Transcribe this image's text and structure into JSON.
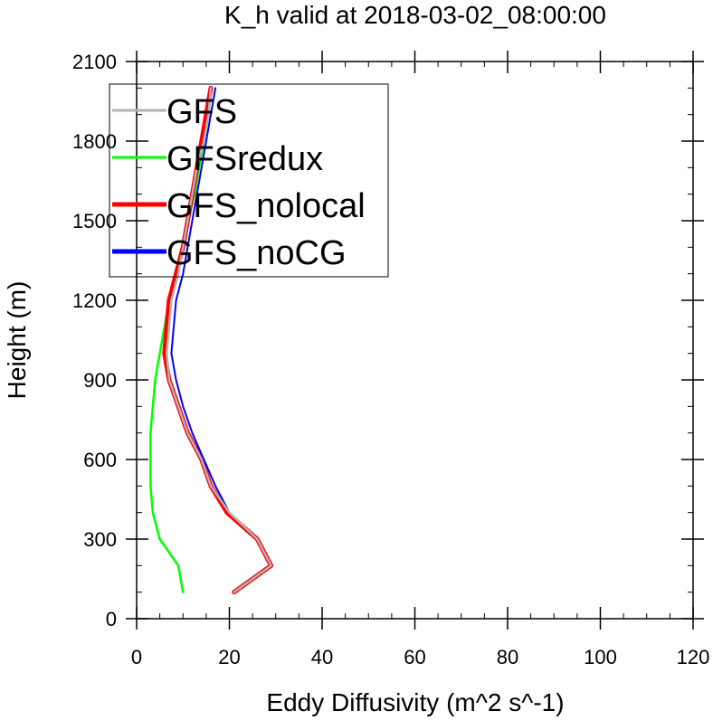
{
  "chart_data": {
    "type": "line",
    "title": "K_h valid at 2018-03-02_08:00:00",
    "xlabel": "Eddy Diffusivity (m^2 s^-1)",
    "ylabel": "Height (m)",
    "xlim": [
      0,
      120
    ],
    "ylim": [
      0,
      2100
    ],
    "xticks": [
      0,
      20,
      40,
      60,
      80,
      100,
      120
    ],
    "yticks": [
      0,
      300,
      600,
      900,
      1200,
      1500,
      1800,
      2100
    ],
    "xtick_labels": [
      "0",
      "20",
      "40",
      "60",
      "80",
      "100",
      "120"
    ],
    "ytick_labels": [
      "0",
      "300",
      "600",
      "900",
      "1200",
      "1500",
      "1800",
      "2100"
    ],
    "grid": false,
    "legend_position": "top-left",
    "series": [
      {
        "name": "GFS",
        "color": "#b3b3b3",
        "points": [
          [
            21,
            100
          ],
          [
            29,
            200
          ],
          [
            26,
            300
          ],
          [
            20,
            400
          ],
          [
            16,
            500
          ],
          [
            14,
            600
          ],
          [
            11,
            700
          ],
          [
            9,
            800
          ],
          [
            7,
            900
          ],
          [
            6.5,
            1000
          ],
          [
            7,
            1100
          ],
          [
            7.5,
            1200
          ],
          [
            9,
            1300
          ],
          [
            10,
            1400
          ],
          [
            11,
            1500
          ],
          [
            12,
            1600
          ],
          [
            13,
            1700
          ],
          [
            14.5,
            1800
          ],
          [
            15.5,
            1900
          ],
          [
            16,
            2000
          ]
        ]
      },
      {
        "name": "GFSredux",
        "color": "#00ff00",
        "points": [
          [
            10,
            100
          ],
          [
            9,
            200
          ],
          [
            5,
            300
          ],
          [
            3.5,
            400
          ],
          [
            3,
            500
          ],
          [
            3,
            600
          ],
          [
            3,
            700
          ],
          [
            3.5,
            800
          ],
          [
            4,
            900
          ],
          [
            5,
            1000
          ],
          [
            6,
            1100
          ],
          [
            7,
            1200
          ],
          [
            8.5,
            1300
          ],
          [
            10,
            1400
          ],
          [
            11,
            1500
          ],
          [
            12.5,
            1600
          ],
          [
            13.5,
            1700
          ],
          [
            14.5,
            1800
          ],
          [
            15.5,
            1900
          ],
          [
            16,
            2000
          ]
        ]
      },
      {
        "name": "GFS_nolocal",
        "color": "#ff0000",
        "points": [
          [
            21,
            100
          ],
          [
            29,
            200
          ],
          [
            26,
            300
          ],
          [
            19.5,
            400
          ],
          [
            16,
            500
          ],
          [
            14,
            600
          ],
          [
            11,
            700
          ],
          [
            9,
            800
          ],
          [
            7,
            900
          ],
          [
            6,
            1000
          ],
          [
            6.5,
            1100
          ],
          [
            7,
            1200
          ],
          [
            8.5,
            1300
          ],
          [
            10,
            1400
          ],
          [
            11,
            1500
          ],
          [
            12,
            1600
          ],
          [
            13,
            1700
          ],
          [
            14,
            1800
          ],
          [
            15,
            1900
          ],
          [
            16,
            2000
          ]
        ]
      },
      {
        "name": "GFS_noCG",
        "color": "#0000ff",
        "points": [
          [
            21,
            100
          ],
          [
            29,
            200
          ],
          [
            26,
            300
          ],
          [
            20,
            400
          ],
          [
            17,
            500
          ],
          [
            14.5,
            600
          ],
          [
            12,
            700
          ],
          [
            10,
            800
          ],
          [
            8.5,
            900
          ],
          [
            7.5,
            1000
          ],
          [
            8,
            1100
          ],
          [
            8.5,
            1200
          ],
          [
            10,
            1300
          ],
          [
            11,
            1400
          ],
          [
            12,
            1500
          ],
          [
            13,
            1600
          ],
          [
            14,
            1700
          ],
          [
            15,
            1800
          ],
          [
            16,
            1900
          ],
          [
            17,
            2000
          ]
        ]
      }
    ]
  }
}
